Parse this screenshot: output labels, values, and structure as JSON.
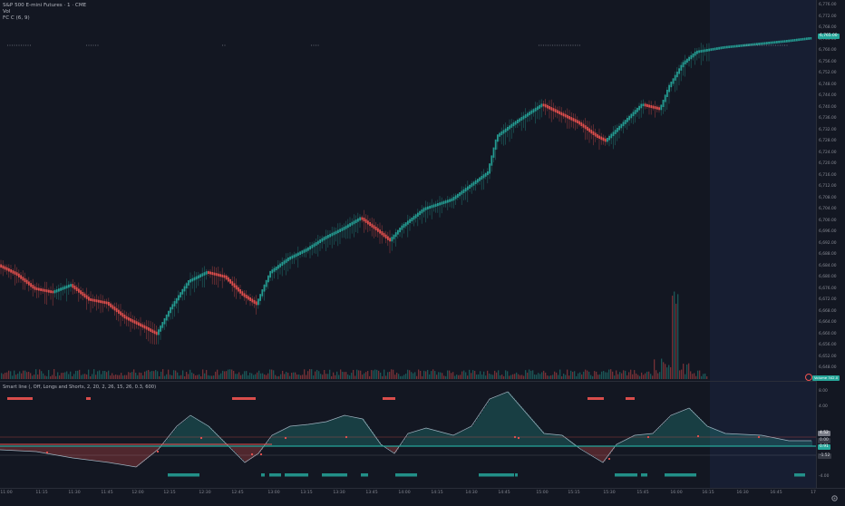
{
  "legend": {
    "symbol": "S&P 500 E-mini Futures · 1 · CME",
    "vol": "Vol",
    "fcc": "FC C (6, 9)"
  },
  "oscillator": {
    "title": "Smart line (, Off, Longs and Shorts, 2, 20, 2, 26, 15, 26, 0.3, 600)"
  },
  "price_axis": {
    "labels": [
      "6,776.00",
      "6,772.00",
      "6,768.00",
      "6,764.00",
      "6,760.00",
      "6,756.00",
      "6,752.00",
      "6,748.00",
      "6,744.00",
      "6,740.00",
      "6,736.00",
      "6,732.00",
      "6,728.00",
      "6,724.00",
      "6,720.00",
      "6,716.00",
      "6,712.00",
      "6,708.00",
      "6,704.00",
      "6,700.00",
      "6,696.00",
      "6,692.00",
      "6,688.00",
      "6,684.00",
      "6,680.00",
      "6,676.00",
      "6,672.00",
      "6,668.00",
      "6,664.00",
      "6,660.00",
      "6,656.00",
      "6,652.00",
      "6,648.00"
    ],
    "current_price": "6,765.00",
    "volume_tag": "Volume",
    "volume_value": "342.0"
  },
  "osc_axis": {
    "labels": [
      "8.00",
      "4.00",
      "0.00",
      "-4.00"
    ],
    "tag_top": "8.00",
    "tag_top_label": "4.52",
    "tag_mid_label": "0.00",
    "tag_mid_value": "0.91",
    "tag_low_label": "-1.52"
  },
  "time_axis": {
    "labels": [
      "11:00",
      "11:15",
      "11:30",
      "11:45",
      "12:00",
      "12:15",
      "12:30",
      "12:45",
      "13:00",
      "13:15",
      "13:30",
      "13:45",
      "14:00",
      "14:15",
      "14:30",
      "14:45",
      "15:00",
      "15:15",
      "15:30",
      "15:45",
      "16:00",
      "16:15",
      "16:30",
      "16:45",
      "17"
    ]
  },
  "colors": {
    "bull": "#26a69a",
    "bear": "#ef5350",
    "session_shade": "#1c2440",
    "background": "#131722"
  },
  "icons": {
    "settings": "gear-icon",
    "volume_badge": "pin-icon"
  }
}
